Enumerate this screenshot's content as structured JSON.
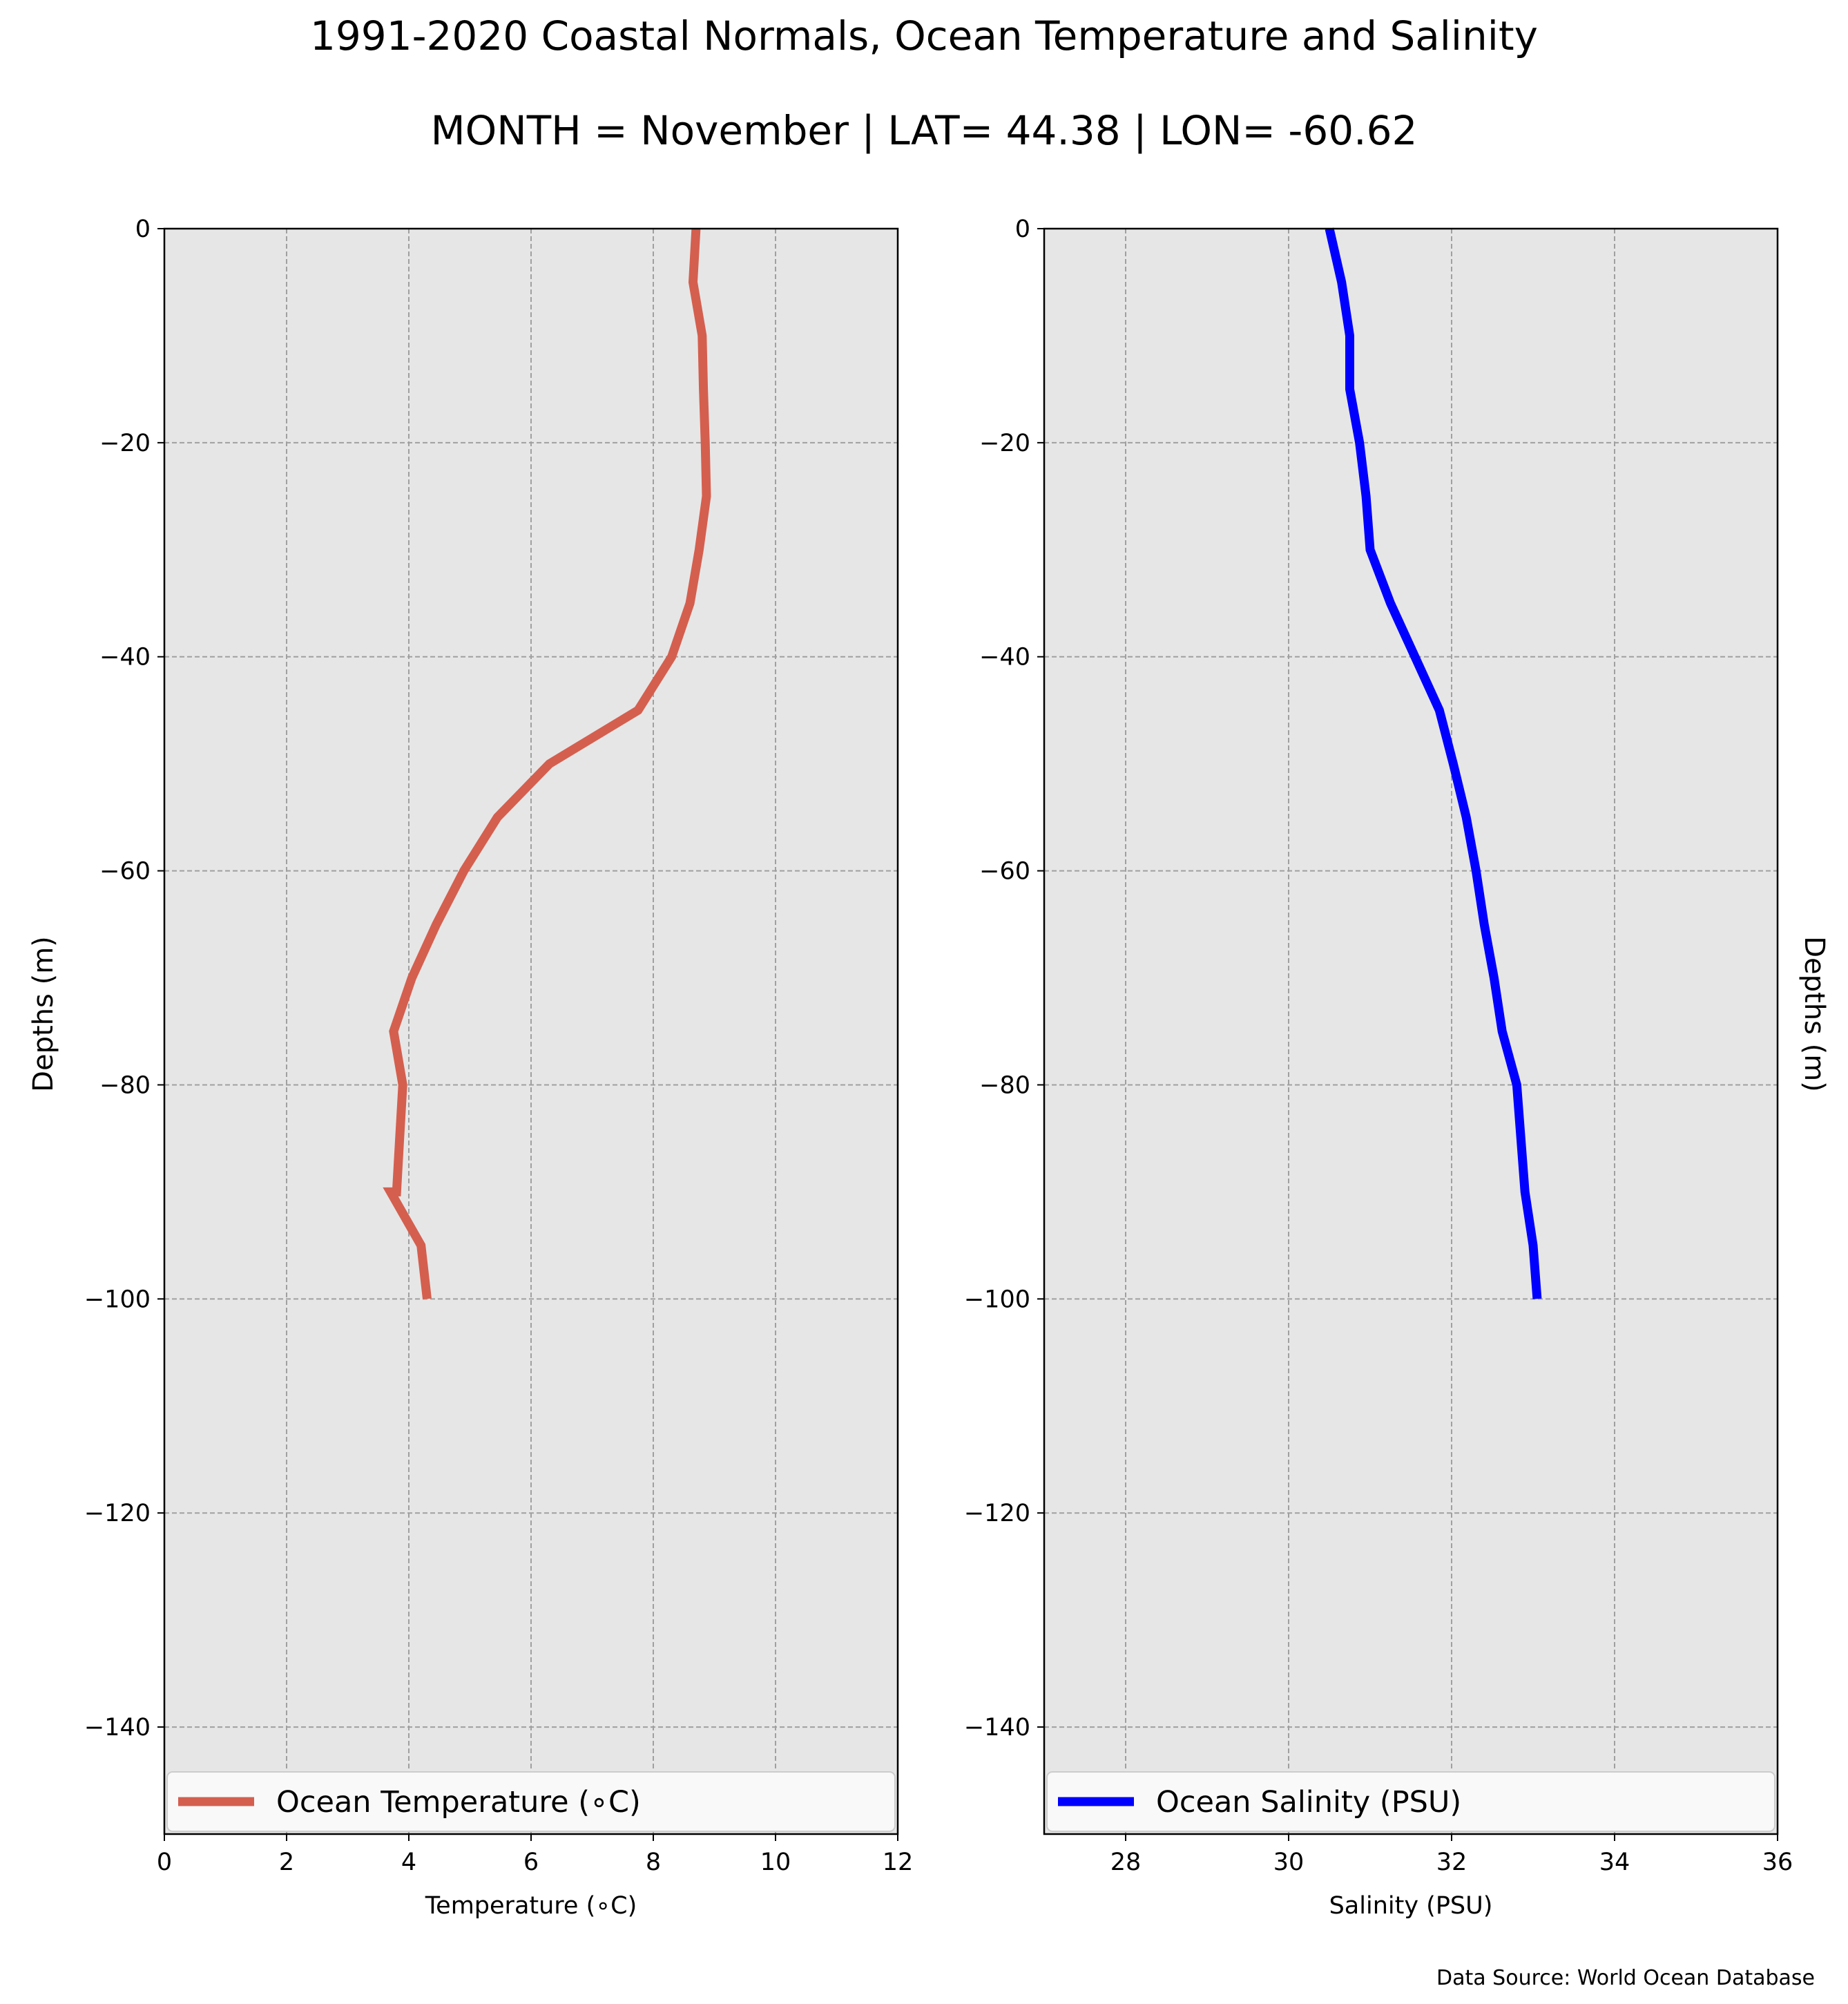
{
  "title": "1991-2020 Coastal Normals, Ocean Temperature and Salinity",
  "subtitle": "MONTH = November | LAT= 44.38 | LON= -60.62",
  "source": "Data Source: World Ocean Database",
  "chart_data": [
    {
      "type": "line",
      "xlabel": "Temperature (∘C)",
      "ylabel": "Depths (m)",
      "xlim": [
        0,
        12
      ],
      "ylim": [
        -150,
        0
      ],
      "xticks": [
        "0",
        "2",
        "4",
        "6",
        "8",
        "10",
        "12"
      ],
      "yticks": [
        "0",
        "−20",
        "−40",
        "−60",
        "−80",
        "−100",
        "−120",
        "−140"
      ],
      "grid": true,
      "legend_position": "bottom",
      "series": [
        {
          "name": "Ocean Temperature (∘C)",
          "color": "#d45f4f",
          "x": [
            8.7,
            8.65,
            8.8,
            8.82,
            8.85,
            8.87,
            8.75,
            8.6,
            8.3,
            7.75,
            6.3,
            5.45,
            4.9,
            4.45,
            4.05,
            3.75,
            3.9,
            3.85,
            3.8,
            3.7,
            4.2,
            4.3
          ],
          "y": [
            0,
            -5,
            -10,
            -15,
            -20,
            -25,
            -30,
            -35,
            -40,
            -45,
            -50,
            -55,
            -60,
            -65,
            -70,
            -75,
            -80,
            -85,
            -90,
            -90,
            -95,
            -100
          ]
        }
      ]
    },
    {
      "type": "line",
      "xlabel": "Salinity (PSU)",
      "ylabel": "Depths (m)",
      "xlim": [
        27,
        36
      ],
      "ylim": [
        -150,
        0
      ],
      "xticks": [
        "28",
        "30",
        "32",
        "34",
        "36"
      ],
      "yticks": [
        "0",
        "−20",
        "−40",
        "−60",
        "−80",
        "−100",
        "−120",
        "−140"
      ],
      "grid": true,
      "legend_position": "bottom",
      "series": [
        {
          "name": "Ocean Salinity (PSU)",
          "color": "#0000ff",
          "x": [
            30.5,
            30.65,
            30.75,
            30.75,
            30.87,
            30.95,
            31.0,
            31.25,
            31.55,
            31.85,
            32.02,
            32.18,
            32.3,
            32.4,
            32.52,
            32.62,
            32.8,
            32.85,
            32.9,
            33.0,
            33.05
          ],
          "y": [
            0,
            -5,
            -10,
            -15,
            -20,
            -25,
            -30,
            -35,
            -40,
            -45,
            -50,
            -55,
            -60,
            -65,
            -70,
            -75,
            -80,
            -85,
            -90,
            -95,
            -100
          ]
        }
      ]
    }
  ]
}
